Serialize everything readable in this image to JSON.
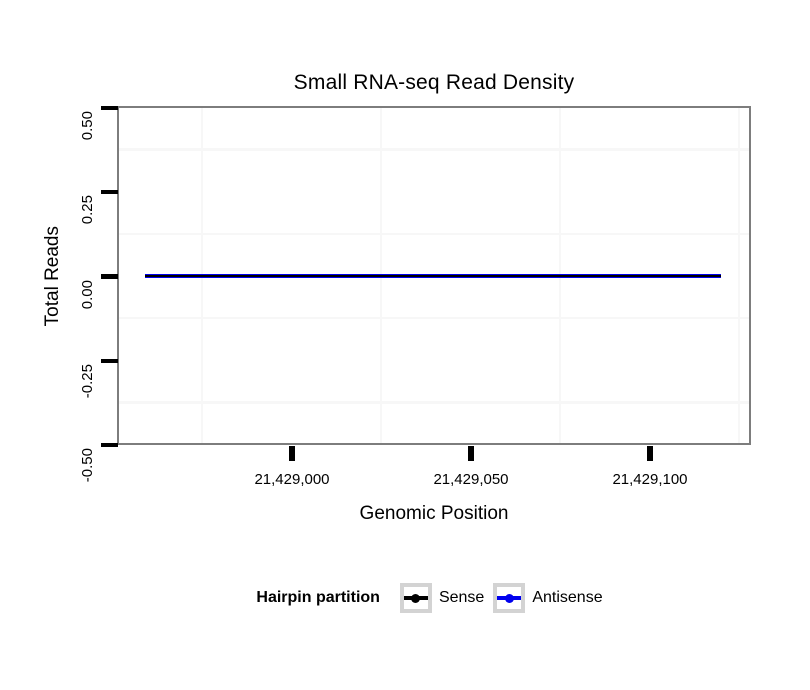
{
  "page": {
    "background": "#ffffff"
  },
  "chart_data": {
    "type": "line",
    "title": "Small RNA-seq Read Density",
    "xlabel": "Genomic Position",
    "ylabel": "Total Reads",
    "xlim": [
      21428951,
      21429128
    ],
    "ylim": [
      -0.5,
      0.5
    ],
    "grid_on": true,
    "x_ticks": [
      {
        "value": 21429000,
        "label": "21,429,000"
      },
      {
        "value": 21429050,
        "label": "21,429,050"
      },
      {
        "value": 21429100,
        "label": "21,429,100"
      }
    ],
    "y_ticks": [
      {
        "value": 0.5,
        "label": "0.50"
      },
      {
        "value": 0.25,
        "label": "0.25"
      },
      {
        "value": 0.0,
        "label": "0.00"
      },
      {
        "value": -0.25,
        "label": "-0.25"
      },
      {
        "value": -0.5,
        "label": "-0.50"
      }
    ],
    "grid": {
      "minor_x_values": [
        21428975,
        21429025,
        21429075,
        21429125
      ],
      "minor_y_values": [
        0.375,
        0.125,
        -0.125,
        -0.375
      ],
      "color": "#f7f7f7"
    },
    "series": [
      {
        "name": "Sense",
        "color": "#000000",
        "x_start": 21428959,
        "x_end": 21429120,
        "y": 0
      },
      {
        "name": "Antisense",
        "color": "#0000ee",
        "x_start": 21428959,
        "x_end": 21429120,
        "y": 0
      }
    ],
    "legend": {
      "title": "Hairpin partition",
      "position": "bottom",
      "entries": [
        "Sense",
        "Antisense"
      ]
    },
    "panel": {
      "border_color": "#7d7d7d",
      "background": "#ffffff",
      "tick_color": "#000000"
    }
  }
}
